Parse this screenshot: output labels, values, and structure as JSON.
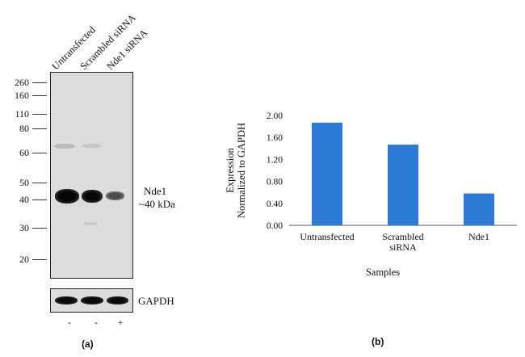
{
  "blot": {
    "lanes": [
      "Untransfected",
      "Scrambled siRNA",
      "Nde1 siRNA"
    ],
    "mw_markers": [
      "260",
      "160",
      "110",
      "80",
      "60",
      "50",
      "40",
      "30",
      "20"
    ],
    "target_name": "Nde1",
    "target_size": "~40 kDa",
    "loading_control": "GAPDH",
    "treatment_signs": [
      "-",
      "-",
      "+"
    ],
    "panel_label": "(a)"
  },
  "chart_panel_label": "(b)",
  "chart_data": {
    "type": "bar",
    "categories": [
      "Untransfected",
      "Scrambled siRNA",
      "Nde1"
    ],
    "values": [
      1.87,
      1.47,
      0.58
    ],
    "ylabel": "Expression Normalized to GAPDH",
    "xlabel": "Samples",
    "ylim": [
      0,
      2.0
    ],
    "yticks": [
      "0.00",
      "0.40",
      "0.80",
      "1.20",
      "1.60",
      "2.00"
    ],
    "bar_color": "#2e7bd6",
    "grid": false
  }
}
